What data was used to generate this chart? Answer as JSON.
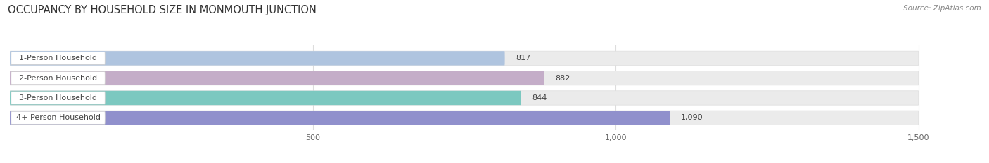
{
  "title": "OCCUPANCY BY HOUSEHOLD SIZE IN MONMOUTH JUNCTION",
  "source": "Source: ZipAtlas.com",
  "categories": [
    "1-Person Household",
    "2-Person Household",
    "3-Person Household",
    "4+ Person Household"
  ],
  "values": [
    817,
    882,
    844,
    1090
  ],
  "bar_colors": [
    "#afc4df",
    "#c4adc8",
    "#7cc8c0",
    "#9090cc"
  ],
  "xlim_max": 1600,
  "data_max": 1500,
  "xticks": [
    500,
    1000,
    1500
  ],
  "xtick_labels": [
    "500",
    "1,000",
    "1,500"
  ],
  "background_color": "#ffffff",
  "bar_bg_color": "#ebebeb",
  "bar_label_bg": "#ffffff",
  "title_fontsize": 10.5,
  "label_fontsize": 8,
  "value_fontsize": 8,
  "source_fontsize": 7.5,
  "grid_color": "#dddddd",
  "text_color": "#444444",
  "source_color": "#888888"
}
